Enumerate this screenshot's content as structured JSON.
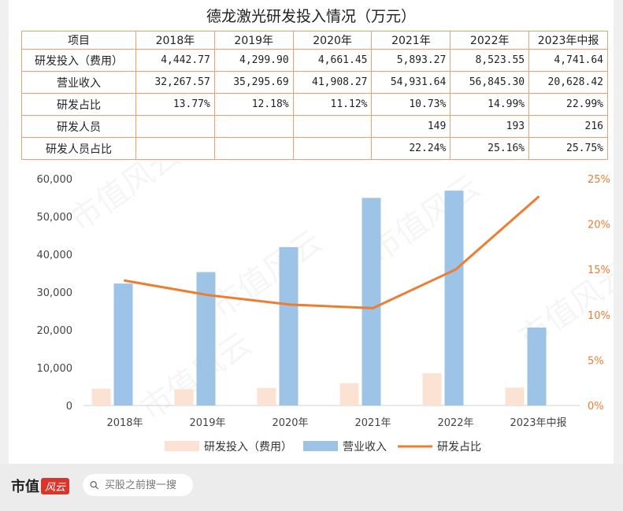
{
  "title": "德龙激光研发投入情况（万元）",
  "table": {
    "headers": [
      "项目",
      "2018年",
      "2019年",
      "2020年",
      "2021年",
      "2022年",
      "2023年中报"
    ],
    "rows": [
      {
        "label": "研发投入（费用）",
        "cells": [
          "4,442.77",
          "4,299.90",
          "4,661.45",
          "5,893.27",
          "8,523.55",
          "4,741.64"
        ]
      },
      {
        "label": "营业收入",
        "cells": [
          "32,267.57",
          "35,295.69",
          "41,908.27",
          "54,931.64",
          "56,845.30",
          "20,628.42"
        ]
      },
      {
        "label": "研发占比",
        "cells": [
          "13.77%",
          "12.18%",
          "11.12%",
          "10.73%",
          "14.99%",
          "22.99%"
        ]
      },
      {
        "label": "研发人员",
        "cells": [
          "",
          "",
          "",
          "149",
          "193",
          "216"
        ]
      },
      {
        "label": "研发人员占比",
        "cells": [
          "",
          "",
          "",
          "22.24%",
          "25.16%",
          "25.75%"
        ]
      }
    ]
  },
  "chart_data": {
    "type": "bar",
    "categories": [
      "2018年",
      "2019年",
      "2020年",
      "2021年",
      "2022年",
      "2023年中报"
    ],
    "series": [
      {
        "name": "研发投入（费用）",
        "kind": "bar",
        "axis": "left",
        "color": "#fbe2d3",
        "values": [
          4442.77,
          4299.9,
          4661.45,
          5893.27,
          8523.55,
          4741.64
        ]
      },
      {
        "name": "营业收入",
        "kind": "bar",
        "axis": "left",
        "color": "#9dc3e6",
        "values": [
          32267.57,
          35295.69,
          41908.27,
          54931.64,
          56845.3,
          20628.42
        ]
      },
      {
        "name": "研发占比",
        "kind": "line",
        "axis": "right",
        "color": "#ed7d31",
        "values": [
          13.77,
          12.18,
          11.12,
          10.73,
          14.99,
          22.99
        ]
      }
    ],
    "left_axis": {
      "min": 0,
      "max": 60000,
      "ticks": [
        "0",
        "10,000",
        "20,000",
        "30,000",
        "40,000",
        "50,000",
        "60,000"
      ]
    },
    "right_axis": {
      "min": 0,
      "max": 25,
      "ticks": [
        "0%",
        "5%",
        "10%",
        "15%",
        "20%",
        "25%"
      ],
      "color": "#ed7d31"
    },
    "grid": false,
    "legend_position": "bottom"
  },
  "watermark": "市值风云",
  "footer": {
    "logo_text": "市值",
    "logo_badge": "风云",
    "search_placeholder": "买股之前搜一搜",
    "search_icon": "search-icon"
  }
}
